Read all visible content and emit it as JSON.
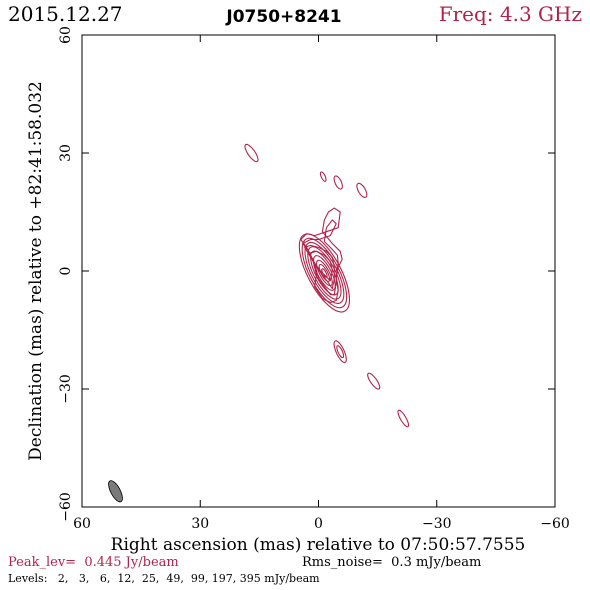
{
  "header": {
    "date": "2015.12.27",
    "source": "J0750+8241",
    "freq": "Freq: 4.3 GHz"
  },
  "footer": {
    "peak": "Peak_lev=  0.445 Jy/beam",
    "rms": "Rms_noise=  0.3 mJy/beam",
    "levels": "Levels:   2,   3,   6,  12,  25,  49,  99, 197, 395 mJy/beam"
  },
  "colors": {
    "contour": "#b0244a",
    "accent": "#b0244a",
    "text": "#000000",
    "beam": "#7a7a7a"
  },
  "chart_data": {
    "type": "contour",
    "title": "J0750+8241",
    "xlabel": "Right ascension (mas) relative to 07:50:57.7555",
    "ylabel": "Declination (mas) relative to +82:41:58.032",
    "xlim": [
      60,
      -60
    ],
    "ylim": [
      -60,
      60
    ],
    "xticks": [
      60,
      30,
      0,
      -30,
      -60
    ],
    "yticks": [
      -60,
      -30,
      0,
      30,
      60
    ],
    "xtick_labels": [
      "60",
      "30",
      "0",
      "−30",
      "−60"
    ],
    "ytick_labels": [
      "−60",
      "−30",
      "0",
      "30",
      "60"
    ],
    "levels_mJy": [
      2,
      3,
      6,
      12,
      25,
      49,
      99,
      197,
      395
    ],
    "peak_Jy_per_beam": 0.445,
    "rms_mJy_per_beam": 0.3,
    "core": {
      "x": -1.5,
      "y": -0.5,
      "angle": -28,
      "contours": [
        {
          "a": 4.2,
          "b": 11.0
        },
        {
          "a": 3.7,
          "b": 9.8
        },
        {
          "a": 3.2,
          "b": 8.6
        },
        {
          "a": 2.7,
          "b": 7.4
        },
        {
          "a": 2.2,
          "b": 6.2
        },
        {
          "a": 1.7,
          "b": 4.9
        },
        {
          "a": 1.2,
          "b": 3.6
        },
        {
          "a": 0.8,
          "b": 2.4
        },
        {
          "a": 0.4,
          "b": 1.2
        }
      ]
    },
    "jet_contours": [
      [
        [
          4.5,
          8
        ],
        [
          3,
          6
        ],
        [
          1.5,
          3
        ],
        [
          0.5,
          -1
        ],
        [
          1,
          -4
        ],
        [
          -1,
          -7
        ],
        [
          -3,
          -8
        ],
        [
          -4.5,
          -7.5
        ],
        [
          -5,
          -5
        ],
        [
          -4.5,
          -2
        ],
        [
          -5,
          1
        ],
        [
          -6,
          3
        ],
        [
          -5.5,
          5
        ],
        [
          -3.5,
          7
        ],
        [
          -1,
          10
        ],
        [
          -1.5,
          13
        ],
        [
          -2.5,
          15
        ],
        [
          -4,
          16
        ],
        [
          -5.5,
          15
        ],
        [
          -5,
          11
        ],
        [
          -2,
          10
        ],
        [
          1,
          9
        ],
        [
          3,
          9.5
        ]
      ],
      [
        [
          4,
          7
        ],
        [
          2.5,
          5
        ],
        [
          1,
          2
        ],
        [
          0,
          -2
        ],
        [
          -1.5,
          -4
        ],
        [
          -3,
          -6
        ],
        [
          -4,
          -6
        ],
        [
          -4.5,
          -3
        ],
        [
          -4.5,
          0
        ],
        [
          -5,
          2
        ],
        [
          -4.8,
          4
        ],
        [
          -3.5,
          5.5
        ],
        [
          -1.5,
          7.5
        ],
        [
          -2,
          11
        ],
        [
          -3.5,
          13
        ],
        [
          -4.5,
          12
        ],
        [
          -3,
          9
        ],
        [
          0,
          8
        ],
        [
          2,
          8
        ]
      ],
      [
        [
          3.5,
          6
        ],
        [
          2,
          3.5
        ],
        [
          0.5,
          1
        ],
        [
          -1,
          -1
        ],
        [
          -2.5,
          -3
        ],
        [
          -3.5,
          -4.5
        ],
        [
          -4,
          -2
        ],
        [
          -4,
          1
        ],
        [
          -3.5,
          3.5
        ],
        [
          -2,
          5
        ],
        [
          0,
          6
        ],
        [
          2,
          6.5
        ]
      ],
      [
        [
          2.5,
          4.5
        ],
        [
          1,
          2
        ],
        [
          -0.5,
          0
        ],
        [
          -2,
          -1.5
        ],
        [
          -3,
          -2.5
        ],
        [
          -3.5,
          0
        ],
        [
          -3,
          2.5
        ],
        [
          -1.5,
          4
        ],
        [
          0.5,
          5
        ]
      ]
    ],
    "components": [
      {
        "x": 17,
        "y": 30,
        "a": 0.9,
        "b": 2.6,
        "angle": -35,
        "rings": 1
      },
      {
        "x": -1.2,
        "y": 24,
        "a": 0.5,
        "b": 1.3,
        "angle": -25,
        "rings": 1
      },
      {
        "x": -5,
        "y": 22.5,
        "a": 0.8,
        "b": 1.8,
        "angle": -25,
        "rings": 1
      },
      {
        "x": -11,
        "y": 20.5,
        "a": 0.9,
        "b": 2.0,
        "angle": -30,
        "rings": 1
      },
      {
        "x": -5.5,
        "y": -20.5,
        "a": 1.0,
        "b": 3.0,
        "angle": -25,
        "rings": 2
      },
      {
        "x": -14,
        "y": -28,
        "a": 0.8,
        "b": 2.4,
        "angle": -35,
        "rings": 1
      },
      {
        "x": -21.5,
        "y": -37.5,
        "a": 0.7,
        "b": 2.4,
        "angle": -30,
        "rings": 1
      }
    ],
    "beam": {
      "x": 51.5,
      "y": -56,
      "a": 1.2,
      "b": 3.0,
      "angle": -28
    }
  }
}
